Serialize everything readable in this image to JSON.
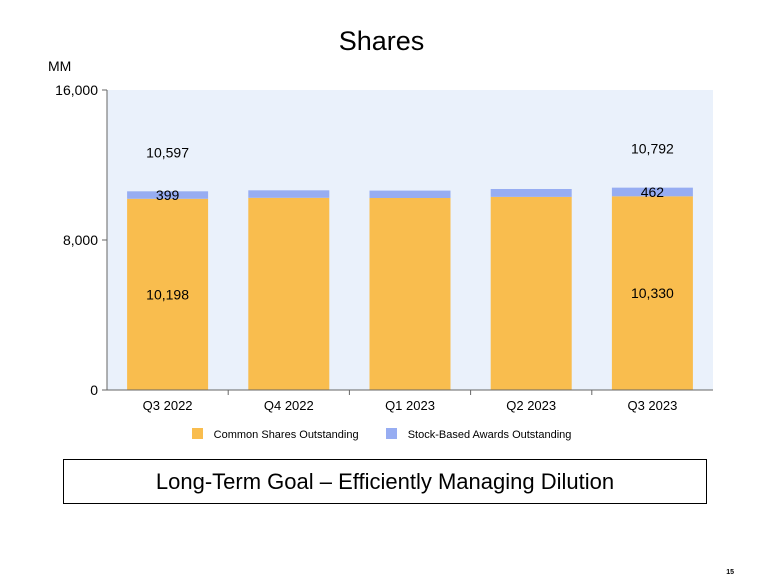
{
  "slide": {
    "title": "Shares",
    "goal_text": "Long-Term Goal – Efficiently Managing Dilution",
    "page_number": "15"
  },
  "colors": {
    "common": "#F9BD4E",
    "awards": "#97ADF2",
    "plot_background": "#EAF1FB",
    "axis": "#666666"
  },
  "chart_data": {
    "type": "bar",
    "stacked": true,
    "title": "Shares",
    "unit_label": "MM",
    "categories": [
      "Q3 2022",
      "Q4 2022",
      "Q1 2023",
      "Q2 2023",
      "Q3 2023"
    ],
    "series": [
      {
        "name": "Common Shares Outstanding",
        "values": [
          10198,
          10250,
          10240,
          10300,
          10330
        ]
      },
      {
        "name": "Stock-Based Awards Outstanding",
        "values": [
          399,
          400,
          395,
          420,
          462
        ]
      }
    ],
    "ylim": [
      0,
      16000
    ],
    "yticks": [
      0,
      8000,
      16000
    ],
    "ytick_labels": [
      "0",
      "8,000",
      "16,000"
    ],
    "data_labels": [
      {
        "category": "Q3 2022",
        "total": "10,597",
        "awards": "399",
        "common": "10,198"
      },
      {
        "category": "Q3 2023",
        "total": "10,792",
        "awards": "462",
        "common": "10,330"
      }
    ],
    "legend_position": "bottom",
    "grid": false
  }
}
